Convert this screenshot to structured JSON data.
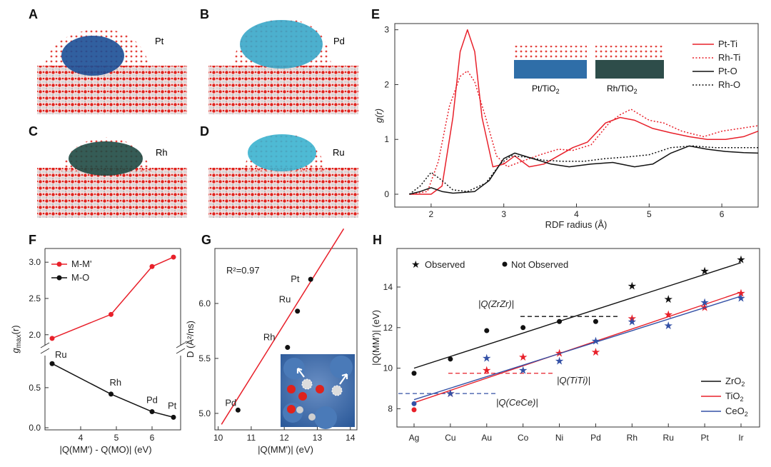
{
  "panel_labels": [
    "A",
    "B",
    "C",
    "D",
    "E",
    "F",
    "G",
    "H"
  ],
  "structures": [
    {
      "label": "Pt",
      "particle": "#1b4f96"
    },
    {
      "label": "Pd",
      "particle": "#39a7c9"
    },
    {
      "label": "Rh",
      "particle": "#1f4a44"
    },
    {
      "label": "Ru",
      "particle": "#3bb3cf"
    }
  ],
  "colors": {
    "red": "#e8202a",
    "black": "#111111",
    "blue": "#3451a6",
    "oxygen": "#e0221c",
    "titanium": "#d8d8d8"
  },
  "chart_data": [
    {
      "panel": "E",
      "type": "line",
      "xlabel": "RDF radius (Å)",
      "ylabel": "g(r)",
      "xlim": [
        1.5,
        6.5
      ],
      "ylim": [
        0,
        3.1
      ],
      "xticks": [
        "2",
        "3",
        "4",
        "5",
        "6"
      ],
      "yticks": [
        "0",
        "1",
        "2",
        "3"
      ],
      "legend_position": "top-right",
      "inset_labels": [
        "Pt/TiO",
        "2",
        "Rh/TiO",
        "2"
      ],
      "series": [
        {
          "name": "Pt-Ti",
          "color": "#e8202a",
          "dash": "solid",
          "points": [
            [
              1.7,
              0
            ],
            [
              2.0,
              0
            ],
            [
              2.15,
              0.15
            ],
            [
              2.3,
              1.4
            ],
            [
              2.4,
              2.6
            ],
            [
              2.5,
              3.0
            ],
            [
              2.6,
              2.6
            ],
            [
              2.7,
              1.4
            ],
            [
              2.85,
              0.5
            ],
            [
              3.0,
              0.55
            ],
            [
              3.15,
              0.7
            ],
            [
              3.35,
              0.5
            ],
            [
              3.55,
              0.55
            ],
            [
              3.75,
              0.7
            ],
            [
              3.95,
              0.85
            ],
            [
              4.15,
              0.95
            ],
            [
              4.4,
              1.3
            ],
            [
              4.6,
              1.4
            ],
            [
              4.8,
              1.35
            ],
            [
              5.05,
              1.2
            ],
            [
              5.3,
              1.12
            ],
            [
              5.55,
              1.05
            ],
            [
              5.8,
              1.0
            ],
            [
              6.05,
              1.0
            ],
            [
              6.3,
              1.05
            ],
            [
              6.5,
              1.15
            ]
          ]
        },
        {
          "name": "Rh-Ti",
          "color": "#e8202a",
          "dash": "dotted",
          "points": [
            [
              1.7,
              0
            ],
            [
              1.95,
              0.05
            ],
            [
              2.1,
              0.6
            ],
            [
              2.25,
              1.6
            ],
            [
              2.4,
              2.15
            ],
            [
              2.5,
              2.25
            ],
            [
              2.6,
              2.05
            ],
            [
              2.75,
              1.4
            ],
            [
              2.9,
              0.7
            ],
            [
              3.05,
              0.5
            ],
            [
              3.25,
              0.6
            ],
            [
              3.5,
              0.72
            ],
            [
              3.75,
              0.82
            ],
            [
              3.95,
              0.8
            ],
            [
              4.2,
              0.9
            ],
            [
              4.45,
              1.3
            ],
            [
              4.6,
              1.45
            ],
            [
              4.75,
              1.55
            ],
            [
              5.0,
              1.35
            ],
            [
              5.2,
              1.3
            ],
            [
              5.45,
              1.15
            ],
            [
              5.75,
              1.05
            ],
            [
              6.0,
              1.15
            ],
            [
              6.25,
              1.2
            ],
            [
              6.5,
              1.25
            ]
          ]
        },
        {
          "name": "Pt-O",
          "color": "#111111",
          "dash": "solid",
          "points": [
            [
              1.7,
              0
            ],
            [
              1.85,
              0.05
            ],
            [
              2.0,
              0.12
            ],
            [
              2.15,
              0.05
            ],
            [
              2.3,
              0.02
            ],
            [
              2.6,
              0.05
            ],
            [
              2.8,
              0.25
            ],
            [
              3.0,
              0.65
            ],
            [
              3.15,
              0.75
            ],
            [
              3.4,
              0.65
            ],
            [
              3.65,
              0.55
            ],
            [
              3.9,
              0.5
            ],
            [
              4.2,
              0.55
            ],
            [
              4.5,
              0.58
            ],
            [
              4.8,
              0.5
            ],
            [
              5.05,
              0.55
            ],
            [
              5.3,
              0.75
            ],
            [
              5.55,
              0.88
            ],
            [
              5.8,
              0.82
            ],
            [
              6.05,
              0.78
            ],
            [
              6.3,
              0.76
            ],
            [
              6.5,
              0.75
            ]
          ]
        },
        {
          "name": "Rh-O",
          "color": "#111111",
          "dash": "dotted",
          "points": [
            [
              1.7,
              0
            ],
            [
              1.85,
              0.15
            ],
            [
              2.0,
              0.4
            ],
            [
              2.15,
              0.25
            ],
            [
              2.3,
              0.08
            ],
            [
              2.5,
              0.05
            ],
            [
              2.75,
              0.2
            ],
            [
              2.95,
              0.55
            ],
            [
              3.1,
              0.7
            ],
            [
              3.3,
              0.68
            ],
            [
              3.55,
              0.62
            ],
            [
              3.8,
              0.6
            ],
            [
              4.1,
              0.6
            ],
            [
              4.4,
              0.65
            ],
            [
              4.7,
              0.68
            ],
            [
              5.0,
              0.72
            ],
            [
              5.3,
              0.85
            ],
            [
              5.6,
              0.88
            ],
            [
              5.9,
              0.85
            ],
            [
              6.2,
              0.85
            ],
            [
              6.5,
              0.85
            ]
          ]
        }
      ]
    },
    {
      "panel": "F",
      "type": "line",
      "xlabel": "|Q(MM') - Q(MO)| (eV)",
      "ylabel": "g",
      "ylabel_sub": "max",
      "ylabel_tail": "(r)",
      "x": [
        3.2,
        4.85,
        6.0,
        6.6
      ],
      "xticks": [
        "4",
        "5",
        "6"
      ],
      "upper": {
        "ylim": [
          1.85,
          3.12
        ],
        "yticks": [
          "2.0",
          "2.5",
          "3.0"
        ]
      },
      "lower": {
        "ylim": [
          0,
          0.9
        ],
        "yticks": [
          "0.0",
          "0.5"
        ]
      },
      "series": [
        {
          "name": "M-M'",
          "color": "#e8202a",
          "values": [
            1.95,
            2.28,
            2.94,
            3.07
          ]
        },
        {
          "name": "M-O",
          "color": "#111111",
          "values": [
            0.8,
            0.42,
            0.2,
            0.13
          ]
        }
      ],
      "point_labels": [
        "Ru",
        "Rh",
        "Pd",
        "Pt"
      ],
      "legend_position": "top-left"
    },
    {
      "panel": "G",
      "type": "scatter",
      "xlabel": "|Q(MM')| (eV)",
      "ylabel": "D (Å²/ns)",
      "xlim": [
        9.9,
        14.2
      ],
      "ylim": [
        4.85,
        6.5
      ],
      "xticks": [
        "10",
        "11",
        "12",
        "13",
        "14"
      ],
      "yticks": [
        "5.0",
        "5.5",
        "6.0"
      ],
      "points": [
        {
          "label": "Pd",
          "x": 10.6,
          "y": 5.03
        },
        {
          "label": "Rh",
          "x": 12.1,
          "y": 5.6
        },
        {
          "label": "Ru",
          "x": 12.4,
          "y": 5.93
        },
        {
          "label": "Pt",
          "x": 12.8,
          "y": 6.22
        }
      ],
      "fit": {
        "x": [
          10.1,
          13.8
        ],
        "y": [
          4.9,
          6.68
        ]
      },
      "annotation": "R²=0.97"
    },
    {
      "panel": "H",
      "type": "scatter",
      "xlabel": "",
      "ylabel": "|Q(MM')| (eV)",
      "categories": [
        "Ag",
        "Cu",
        "Au",
        "Co",
        "Ni",
        "Pd",
        "Rh",
        "Ru",
        "Pt",
        "Ir"
      ],
      "ylim": [
        7.1,
        15.9
      ],
      "yticks": [
        "8",
        "10",
        "12",
        "14"
      ],
      "marker_legend": [
        "Observed",
        "Not Observed"
      ],
      "series": [
        {
          "name": "ZrO",
          "name_sub": "2",
          "color": "#111111",
          "values": [
            9.75,
            10.45,
            11.85,
            12.0,
            12.3,
            12.3,
            14.05,
            13.4,
            14.8,
            15.35
          ],
          "observed": [
            false,
            false,
            false,
            false,
            false,
            false,
            true,
            true,
            true,
            true
          ],
          "fit": [
            10.0,
            15.2
          ]
        },
        {
          "name": "TiO",
          "name_sub": "2",
          "color": "#e8202a",
          "values": [
            7.95,
            8.75,
            9.9,
            10.55,
            10.75,
            10.8,
            12.45,
            12.65,
            13.0,
            13.7
          ],
          "observed": [
            false,
            true,
            true,
            true,
            true,
            true,
            true,
            true,
            true,
            true
          ],
          "fit": [
            8.3,
            13.75
          ]
        },
        {
          "name": "CeO",
          "name_sub": "2",
          "color": "#3451a6",
          "values": [
            8.25,
            8.75,
            10.5,
            9.9,
            10.35,
            11.35,
            12.3,
            12.1,
            13.25,
            13.45
          ],
          "observed": [
            false,
            true,
            true,
            true,
            true,
            true,
            true,
            true,
            true,
            true
          ],
          "fit": [
            8.45,
            13.55
          ]
        }
      ],
      "thresholds": [
        {
          "label": "|Q(ZrZr)|",
          "value": 12.55,
          "color": "#111111"
        },
        {
          "label": "|Q(TiTi)|",
          "value": 9.75,
          "color": "#e8202a"
        },
        {
          "label": "|Q(CeCe)|",
          "value": 8.75,
          "color": "#3451a6"
        }
      ]
    }
  ]
}
